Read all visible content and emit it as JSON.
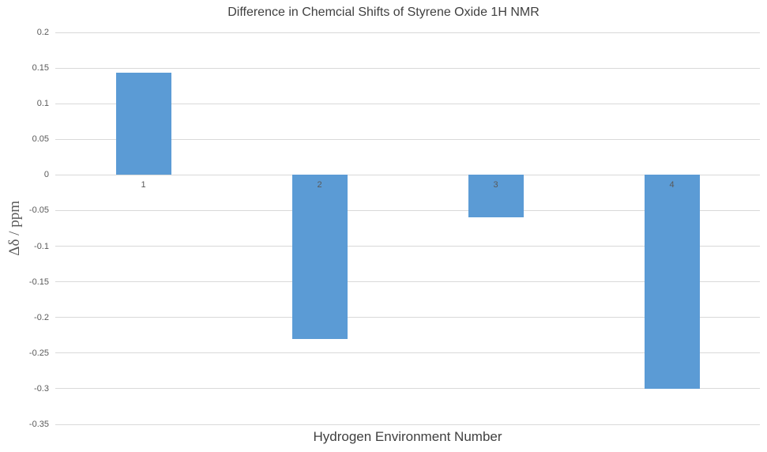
{
  "chart_data": {
    "type": "bar",
    "title": "Difference in Chemcial Shifts of Styrene Oxide 1H NMR",
    "xlabel": "Hydrogen Environment Number",
    "ylabel": "Δδ / ppm",
    "categories": [
      "1",
      "2",
      "3",
      "4"
    ],
    "values": [
      0.144,
      -0.23,
      -0.06,
      -0.3
    ],
    "ylim": [
      -0.35,
      0.2
    ],
    "ytick_step": 0.05,
    "grid": true,
    "legend": "none",
    "colors": {
      "bar": "#5B9BD5",
      "gridline": "#D9D9D9",
      "tick_label": "#595959",
      "title": "#404040",
      "xlabel": "#404040",
      "ylabel": "#595959",
      "background": "#FFFFFF"
    }
  }
}
